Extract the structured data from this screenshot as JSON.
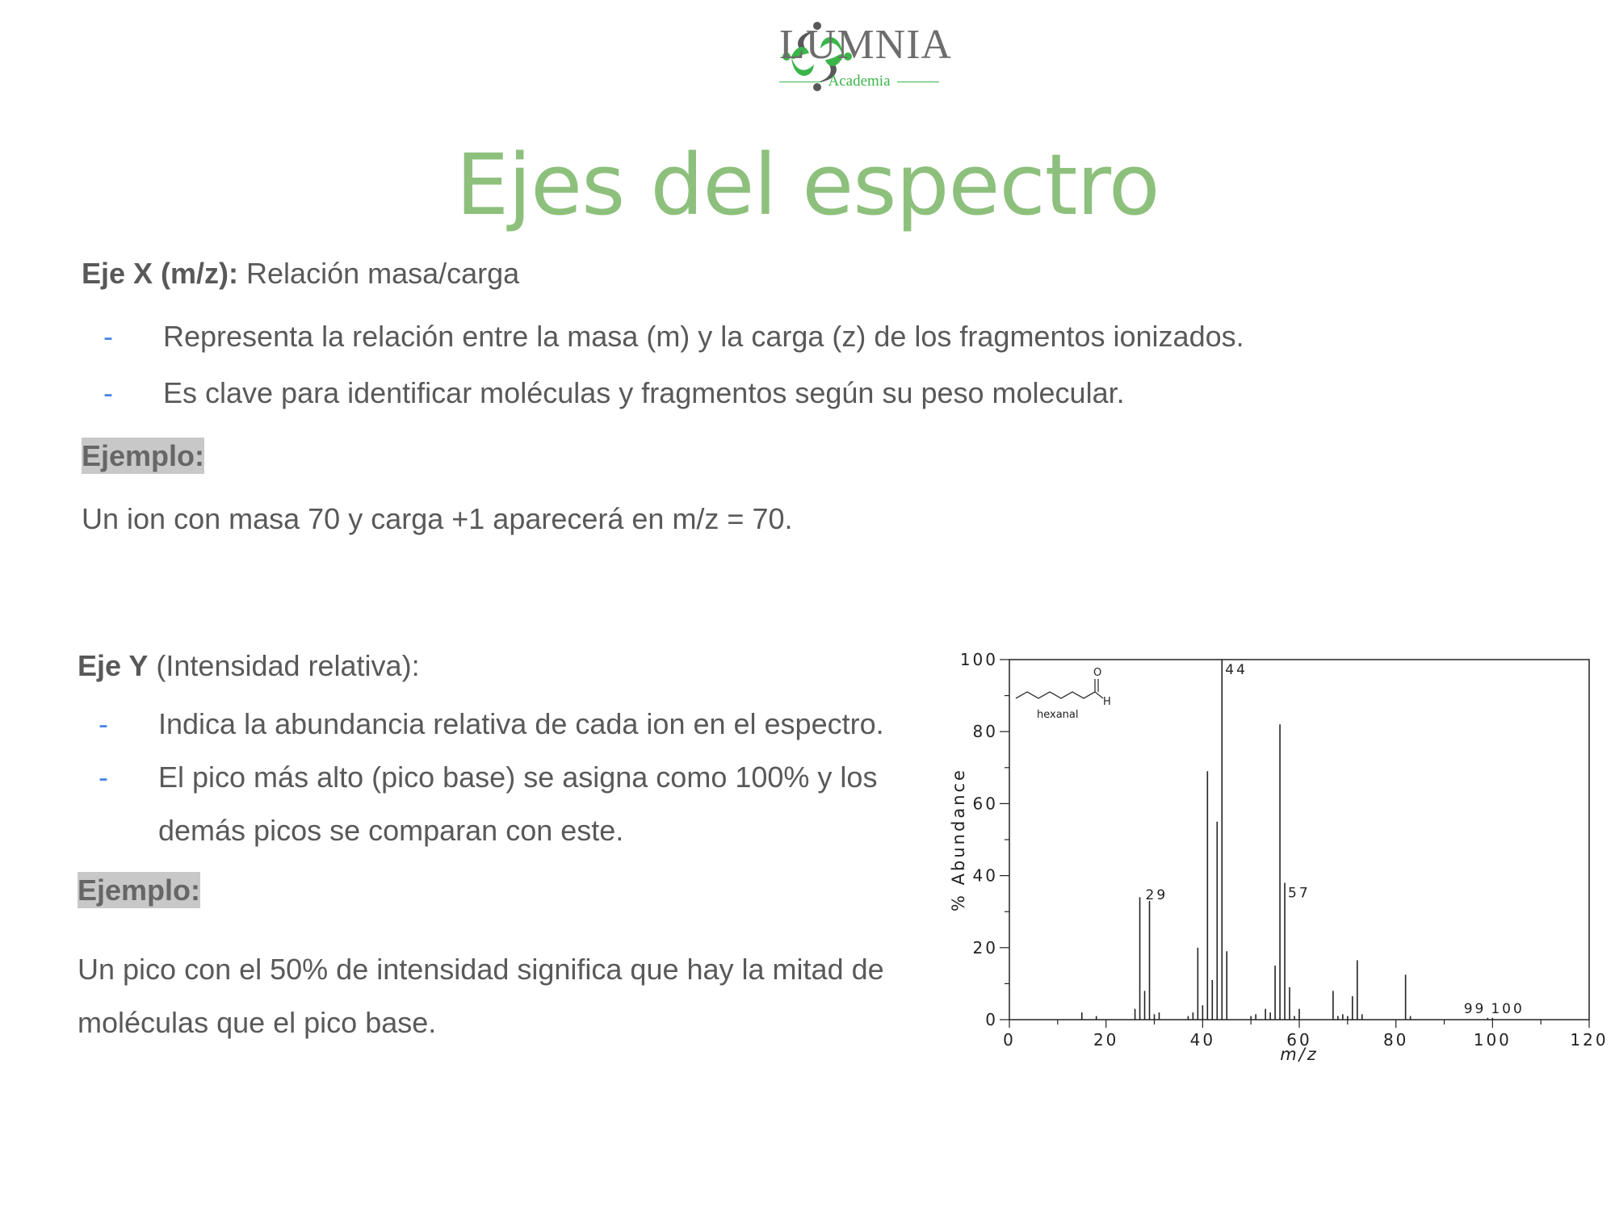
{
  "logo": {
    "brand": "LUMNIA",
    "sub": "Academia"
  },
  "title": "Ejes del espectro",
  "x_axis_section": {
    "label": "Eje X (m/z):",
    "description": " Relación masa/carga",
    "bullets": [
      "Representa la relación entre la masa (m) y la carga (z) de los fragmentos ionizados.",
      "Es clave para identificar moléculas y fragmentos según su peso molecular."
    ],
    "example_label": "Ejemplo:",
    "example_text": "Un ion con masa 70 y carga +1 aparecerá en m/z = 70."
  },
  "y_axis_section": {
    "label": "Eje Y",
    "description": " (Intensidad relativa):",
    "bullets": [
      "Indica la abundancia relativa de cada ion en el espectro.",
      "El pico más alto (pico base) se asigna como 100% y los",
      "demás picos se comparan con este."
    ],
    "example_label": "Ejemplo:",
    "example_lines": [
      "Un pico con el 50% de intensidad significa que hay la mitad de",
      "moléculas que el pico base."
    ]
  },
  "bullet_marker": "-",
  "chart_data": {
    "type": "bar",
    "xlabel": "m/z",
    "ylabel": "% Abundance",
    "xlim": [
      0,
      120
    ],
    "ylim": [
      0,
      100
    ],
    "xticks": [
      "0",
      "20",
      "40",
      "60",
      "80",
      "100",
      "120"
    ],
    "yticks": [
      "0",
      "20",
      "40",
      "60",
      "80",
      "100"
    ],
    "molecule_label": "hexanal",
    "molecule_atoms": [
      "O",
      "H"
    ],
    "peaks": [
      {
        "x": 15,
        "y": 2
      },
      {
        "x": 18,
        "y": 1
      },
      {
        "x": 26,
        "y": 3
      },
      {
        "x": 27,
        "y": 34
      },
      {
        "x": 28,
        "y": 8
      },
      {
        "x": 29,
        "y": 33
      },
      {
        "x": 30,
        "y": 1.5
      },
      {
        "x": 31,
        "y": 2
      },
      {
        "x": 37,
        "y": 1
      },
      {
        "x": 38,
        "y": 2
      },
      {
        "x": 39,
        "y": 20
      },
      {
        "x": 40,
        "y": 4
      },
      {
        "x": 41,
        "y": 69
      },
      {
        "x": 42,
        "y": 11
      },
      {
        "x": 43,
        "y": 55
      },
      {
        "x": 44,
        "y": 100
      },
      {
        "x": 45,
        "y": 19
      },
      {
        "x": 50,
        "y": 1
      },
      {
        "x": 51,
        "y": 1.5
      },
      {
        "x": 53,
        "y": 3
      },
      {
        "x": 54,
        "y": 2
      },
      {
        "x": 55,
        "y": 15
      },
      {
        "x": 56,
        "y": 82
      },
      {
        "x": 57,
        "y": 38
      },
      {
        "x": 58,
        "y": 9
      },
      {
        "x": 59,
        "y": 1
      },
      {
        "x": 60,
        "y": 3
      },
      {
        "x": 67,
        "y": 8
      },
      {
        "x": 68,
        "y": 1
      },
      {
        "x": 69,
        "y": 1.5
      },
      {
        "x": 70,
        "y": 1
      },
      {
        "x": 71,
        "y": 6.5
      },
      {
        "x": 72,
        "y": 16.5
      },
      {
        "x": 73,
        "y": 1.5
      },
      {
        "x": 82,
        "y": 12.5
      },
      {
        "x": 83,
        "y": 1
      },
      {
        "x": 99,
        "y": 0.5
      },
      {
        "x": 100,
        "y": 0.5
      }
    ],
    "labeled_peaks": [
      {
        "x": 29,
        "y": 33,
        "label": "29"
      },
      {
        "x": 44,
        "y": 100,
        "label": "44"
      },
      {
        "x": 57,
        "y": 38,
        "label": "57"
      },
      {
        "x": 99,
        "y": 0.5,
        "label": "99"
      },
      {
        "x": 100,
        "y": 0.5,
        "label": "100"
      }
    ]
  }
}
